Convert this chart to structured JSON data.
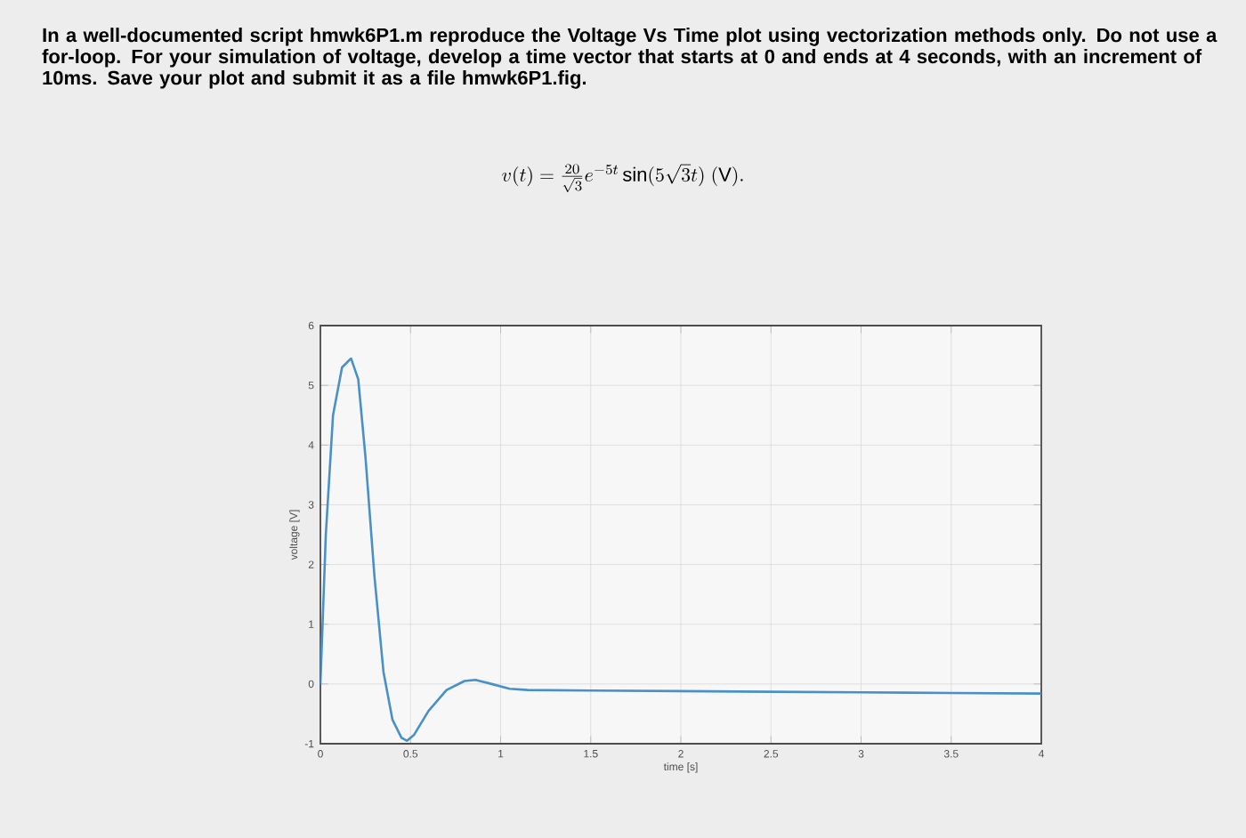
{
  "chart_data": {
    "type": "line",
    "title": "In a well-documented script hmwk6P1.m reproduce the Voltage Vs Time plot using vectorization methods only. Do not use a for-loop. For your simulation of voltage, develop a time vector that starts at 0 and ends at 4 seconds, with an increment of 10ms. Save your plot and submit it as a file hmwk6P1.fig.",
    "subtitle": "v(t) = \\frac{20}{\\sqrt{3}} e^{-5t} \\sin(5\\sqrt{3}t)\\ (\\mathrm{V}).",
    "xlabel": "time [s]",
    "ylabel": "voltage [V]",
    "x": [
      0,
      0.03,
      0.07,
      0.12,
      0.17,
      0.21,
      0.25,
      0.3,
      0.35,
      0.4,
      0.45,
      0.48,
      0.52,
      0.6,
      0.7,
      0.8,
      0.86,
      0.95,
      1.05,
      1.15,
      1.5,
      2,
      2.5,
      3,
      3.5,
      4
    ],
    "series": [
      {
        "color": "#4a90c8",
        "values": [
          0,
          2.5,
          4.5,
          5.3,
          5.45,
          5.1,
          3.8,
          1.8,
          0.2,
          -0.6,
          -0.9,
          -0.95,
          -0.85,
          -0.45,
          -0.1,
          0.05,
          0.07,
          0,
          -0.08,
          -0.1,
          -0.11,
          -0.12,
          -0.13,
          -0.14,
          -0.15,
          -0.16
        ]
      }
    ],
    "xlim": [
      0,
      4
    ],
    "ylim": [
      -1,
      6
    ],
    "xticks": [
      0,
      0.5,
      1,
      1.5,
      2,
      2.5,
      3,
      3.5,
      4
    ],
    "yticks": [
      -1,
      0,
      1,
      2,
      3,
      4,
      5,
      6
    ],
    "grid": true,
    "marker": "none",
    "line_style": "solid"
  }
}
